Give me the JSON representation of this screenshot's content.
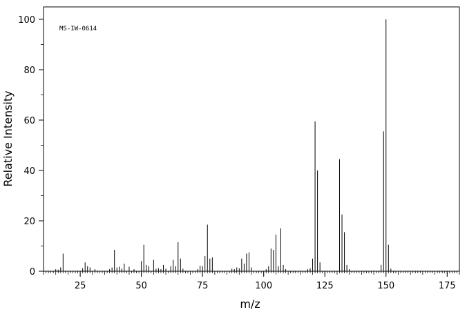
{
  "chart_data": {
    "type": "bar",
    "title": "",
    "annotation": "MS-IW-0614",
    "xlabel": "m/z",
    "ylabel": "Relative Intensity",
    "xlim": [
      10,
      180
    ],
    "ylim": [
      0,
      100
    ],
    "x_ticks": [
      25,
      50,
      75,
      100,
      125,
      150,
      175
    ],
    "y_ticks": [
      0,
      20,
      40,
      60,
      80,
      100
    ],
    "grid": false,
    "legend": "none",
    "peaks": [
      {
        "x": 15,
        "y": 0.8
      },
      {
        "x": 16,
        "y": 0.6
      },
      {
        "x": 17,
        "y": 1.5
      },
      {
        "x": 18,
        "y": 7.0
      },
      {
        "x": 26,
        "y": 1.2
      },
      {
        "x": 27,
        "y": 3.5
      },
      {
        "x": 28,
        "y": 2.0
      },
      {
        "x": 29,
        "y": 1.5
      },
      {
        "x": 31,
        "y": 0.8
      },
      {
        "x": 37,
        "y": 0.8
      },
      {
        "x": 38,
        "y": 1.5
      },
      {
        "x": 39,
        "y": 8.5
      },
      {
        "x": 40,
        "y": 1.5
      },
      {
        "x": 41,
        "y": 1.8
      },
      {
        "x": 42,
        "y": 1.0
      },
      {
        "x": 43,
        "y": 3.0
      },
      {
        "x": 45,
        "y": 1.8
      },
      {
        "x": 47,
        "y": 0.8
      },
      {
        "x": 50,
        "y": 4.0
      },
      {
        "x": 51,
        "y": 10.5
      },
      {
        "x": 52,
        "y": 2.5
      },
      {
        "x": 53,
        "y": 2.0
      },
      {
        "x": 55,
        "y": 4.5
      },
      {
        "x": 56,
        "y": 1.0
      },
      {
        "x": 57,
        "y": 1.2
      },
      {
        "x": 58,
        "y": 0.8
      },
      {
        "x": 59,
        "y": 2.5
      },
      {
        "x": 60,
        "y": 1.0
      },
      {
        "x": 62,
        "y": 2.0
      },
      {
        "x": 63,
        "y": 4.5
      },
      {
        "x": 64,
        "y": 2.0
      },
      {
        "x": 65,
        "y": 11.5
      },
      {
        "x": 66,
        "y": 5.0
      },
      {
        "x": 67,
        "y": 1.0
      },
      {
        "x": 73,
        "y": 0.8
      },
      {
        "x": 74,
        "y": 2.2
      },
      {
        "x": 75,
        "y": 2.0
      },
      {
        "x": 76,
        "y": 6.0
      },
      {
        "x": 77,
        "y": 18.5
      },
      {
        "x": 78,
        "y": 5.0
      },
      {
        "x": 79,
        "y": 5.5
      },
      {
        "x": 87,
        "y": 1.0
      },
      {
        "x": 88,
        "y": 0.8
      },
      {
        "x": 89,
        "y": 1.5
      },
      {
        "x": 90,
        "y": 1.2
      },
      {
        "x": 91,
        "y": 5.0
      },
      {
        "x": 92,
        "y": 3.0
      },
      {
        "x": 93,
        "y": 7.0
      },
      {
        "x": 94,
        "y": 7.5
      },
      {
        "x": 95,
        "y": 1.5
      },
      {
        "x": 101,
        "y": 0.8
      },
      {
        "x": 102,
        "y": 2.0
      },
      {
        "x": 103,
        "y": 9.0
      },
      {
        "x": 104,
        "y": 8.5
      },
      {
        "x": 105,
        "y": 14.5
      },
      {
        "x": 106,
        "y": 2.0
      },
      {
        "x": 107,
        "y": 17.0
      },
      {
        "x": 108,
        "y": 2.5
      },
      {
        "x": 109,
        "y": 0.8
      },
      {
        "x": 118,
        "y": 0.8
      },
      {
        "x": 119,
        "y": 1.2
      },
      {
        "x": 120,
        "y": 5.0
      },
      {
        "x": 121,
        "y": 59.5
      },
      {
        "x": 122,
        "y": 40.0
      },
      {
        "x": 123,
        "y": 3.5
      },
      {
        "x": 131,
        "y": 44.5
      },
      {
        "x": 132,
        "y": 22.5
      },
      {
        "x": 133,
        "y": 15.5
      },
      {
        "x": 134,
        "y": 2.5
      },
      {
        "x": 135,
        "y": 0.8
      },
      {
        "x": 148,
        "y": 2.5
      },
      {
        "x": 149,
        "y": 55.5
      },
      {
        "x": 150,
        "y": 100
      },
      {
        "x": 151,
        "y": 10.5
      },
      {
        "x": 152,
        "y": 1.0
      }
    ]
  }
}
